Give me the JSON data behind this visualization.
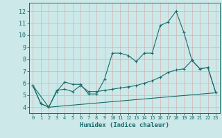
{
  "title": "",
  "xlabel": "Humidex (Indice chaleur)",
  "bg_color": "#cce8e8",
  "grid_color": "#b8d4d4",
  "line_color": "#1a6b6b",
  "xlim": [
    -0.5,
    23.5
  ],
  "ylim": [
    3.5,
    12.7
  ],
  "yticks": [
    4,
    5,
    6,
    7,
    8,
    9,
    10,
    11,
    12
  ],
  "xticks": [
    0,
    1,
    2,
    3,
    4,
    5,
    6,
    7,
    8,
    9,
    10,
    11,
    12,
    13,
    14,
    15,
    16,
    17,
    18,
    19,
    20,
    21,
    22,
    23
  ],
  "series1_x": [
    0,
    1,
    2,
    3,
    4,
    5,
    6,
    7,
    8,
    9,
    10,
    11,
    12,
    13,
    14,
    15,
    16,
    17,
    18,
    19,
    20,
    21,
    22,
    23
  ],
  "series1_y": [
    5.8,
    4.3,
    4.0,
    5.3,
    6.1,
    5.9,
    5.9,
    5.1,
    5.1,
    6.3,
    8.5,
    8.5,
    8.3,
    7.8,
    8.5,
    8.5,
    10.8,
    11.1,
    12.0,
    10.2,
    7.9,
    7.2,
    7.3,
    5.2
  ],
  "series2_x": [
    0,
    1,
    2,
    3,
    4,
    5,
    6,
    7,
    8,
    9,
    10,
    11,
    12,
    13,
    14,
    15,
    16,
    17,
    18,
    19,
    20,
    21,
    22,
    23
  ],
  "series2_y": [
    5.8,
    4.3,
    4.0,
    5.4,
    5.5,
    5.3,
    5.8,
    5.3,
    5.3,
    5.4,
    5.5,
    5.6,
    5.7,
    5.8,
    6.0,
    6.2,
    6.5,
    6.9,
    7.1,
    7.2,
    7.9,
    7.2,
    7.3,
    5.2
  ],
  "series3_x": [
    0,
    2,
    23
  ],
  "series3_y": [
    5.8,
    4.0,
    5.2
  ]
}
